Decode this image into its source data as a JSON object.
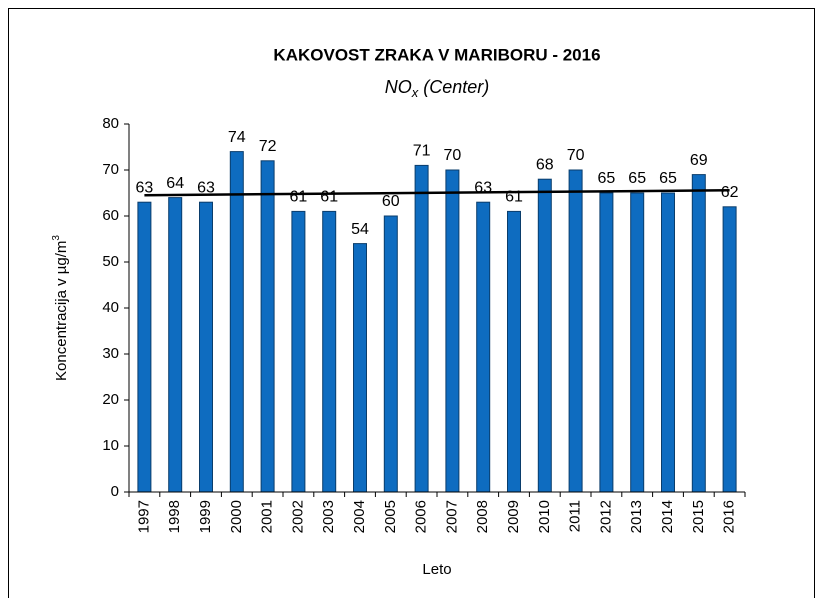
{
  "chart_data": {
    "type": "bar",
    "title": "KAKOVOST ZRAKA V MARIBORU - 2016",
    "subtitle": [
      "NO",
      "x",
      " (Center)"
    ],
    "ylabel": [
      "Koncentracija v µg/m",
      "3"
    ],
    "xlabel": "Leto",
    "categories": [
      "1997",
      "1998",
      "1999",
      "2000",
      "2001",
      "2002",
      "2003",
      "2004",
      "2005",
      "2006",
      "2007",
      "2008",
      "2009",
      "2010",
      "2011",
      "2012",
      "2013",
      "2014",
      "2015",
      "2016"
    ],
    "values": [
      63,
      64,
      63,
      74,
      72,
      61,
      61,
      54,
      60,
      71,
      70,
      63,
      61,
      68,
      70,
      65,
      65,
      65,
      69,
      62
    ],
    "color": "#0e6cc0",
    "ylim": [
      0,
      80
    ],
    "yticks": [
      0,
      10,
      20,
      30,
      40,
      50,
      60,
      70,
      80
    ],
    "trendline": true,
    "grid": false
  }
}
